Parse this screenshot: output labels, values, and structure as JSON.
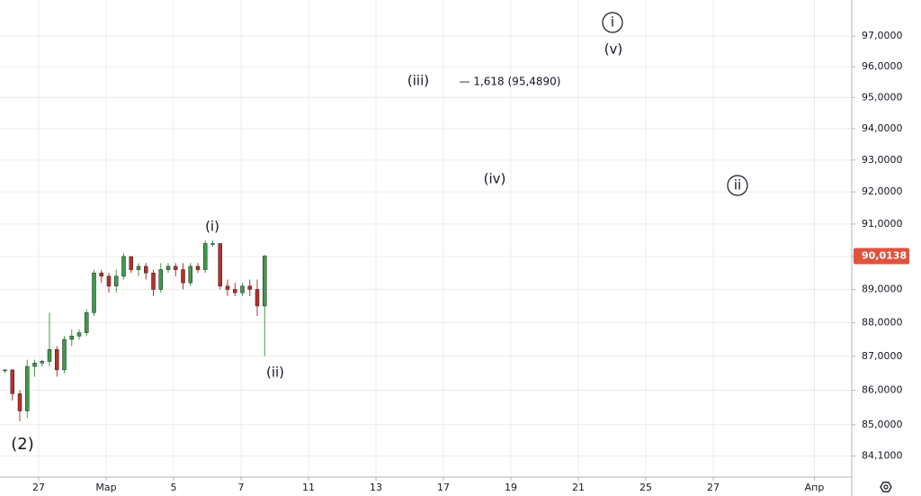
{
  "chart_data": {
    "type": "candlestick",
    "log_scale": true,
    "grid": true,
    "up_color": "#3e9a4a",
    "down_color": "#b8302a",
    "x": [
      -1.0,
      -0.78,
      -0.56,
      -0.34,
      -0.12,
      0.1,
      0.32,
      0.54,
      0.76,
      0.98,
      1.2,
      1.42,
      1.64,
      1.86,
      2.08,
      2.3,
      2.52,
      2.74,
      2.96,
      3.18,
      3.4,
      3.62,
      3.84,
      4.06,
      4.28,
      4.5,
      4.72,
      4.94,
      5.16,
      5.38,
      5.6,
      5.82,
      6.04,
      6.26,
      6.48,
      6.7
    ],
    "open": [
      86.6,
      86.6,
      85.9,
      85.4,
      86.7,
      86.8,
      86.85,
      87.2,
      86.6,
      87.5,
      87.6,
      87.7,
      88.3,
      89.5,
      89.4,
      89.1,
      89.4,
      90.0,
      89.6,
      89.7,
      89.5,
      89.0,
      89.6,
      89.7,
      89.6,
      89.2,
      89.7,
      89.6,
      90.4,
      90.4,
      89.1,
      89.0,
      88.9,
      89.1,
      89.0,
      88.5
    ],
    "high": [
      86.6,
      86.6,
      86.0,
      86.9,
      86.9,
      86.9,
      88.3,
      87.3,
      87.6,
      87.8,
      87.8,
      88.4,
      89.6,
      89.6,
      89.5,
      89.6,
      90.1,
      90.0,
      89.8,
      89.8,
      89.6,
      89.8,
      89.8,
      89.8,
      89.8,
      89.8,
      89.8,
      90.5,
      90.5,
      90.4,
      89.3,
      89.2,
      89.2,
      89.3,
      89.3,
      90.05
    ],
    "low": [
      86.5,
      85.7,
      85.1,
      85.2,
      86.4,
      86.7,
      86.7,
      86.4,
      86.5,
      87.3,
      87.5,
      87.6,
      88.2,
      89.2,
      88.9,
      88.9,
      89.3,
      89.5,
      89.4,
      89.3,
      88.8,
      88.9,
      89.5,
      89.4,
      89.0,
      89.1,
      89.5,
      89.5,
      90.3,
      89.0,
      88.8,
      88.8,
      88.8,
      88.8,
      88.2,
      87.0
    ],
    "close": [
      86.6,
      85.9,
      85.4,
      86.7,
      86.8,
      86.85,
      87.2,
      86.6,
      87.5,
      87.6,
      87.7,
      88.3,
      89.5,
      89.4,
      89.1,
      89.4,
      90.0,
      89.6,
      89.7,
      89.5,
      89.0,
      89.6,
      89.7,
      89.6,
      89.2,
      89.7,
      89.6,
      90.4,
      90.4,
      89.1,
      89.0,
      88.9,
      89.1,
      89.0,
      88.5,
      90.0138
    ],
    "xlim": [
      -1.147,
      24.107
    ],
    "xticks": [
      {
        "value": 0,
        "label": "27"
      },
      {
        "value": 2,
        "label": "Мар"
      },
      {
        "value": 4,
        "label": "5"
      },
      {
        "value": 6,
        "label": "7"
      },
      {
        "value": 8,
        "label": "11"
      },
      {
        "value": 10,
        "label": "13"
      },
      {
        "value": 12,
        "label": "17"
      },
      {
        "value": 14,
        "label": "19"
      },
      {
        "value": 16,
        "label": "21"
      },
      {
        "value": 18,
        "label": "25"
      },
      {
        "value": 20,
        "label": "27"
      },
      {
        "value": 23,
        "label": "Апр"
      }
    ],
    "ylim": [
      83.5,
      98.2
    ],
    "yticks": [
      {
        "value": 84.1,
        "label": "84,1000"
      },
      {
        "value": 85,
        "label": "85,0000"
      },
      {
        "value": 86,
        "label": "86,0000"
      },
      {
        "value": 87,
        "label": "87,0000"
      },
      {
        "value": 88,
        "label": "88,0000"
      },
      {
        "value": 89,
        "label": "89,0000"
      },
      {
        "value": 90,
        "label": "90,0000"
      },
      {
        "value": 91,
        "label": "91,0000"
      },
      {
        "value": 92,
        "label": "92,0000"
      },
      {
        "value": 93,
        "label": "93,0000"
      },
      {
        "value": 94,
        "label": "94,0000"
      },
      {
        "value": 95,
        "label": "95,0000"
      },
      {
        "value": 96,
        "label": "96,0000"
      },
      {
        "value": 97,
        "label": "97,0000"
      }
    ],
    "last_price": {
      "value": 90.0138,
      "label": "90,0138",
      "color": "#e0533d"
    },
    "annotations": [
      {
        "text": "(2)",
        "circled": false
      },
      {
        "text": "(i)",
        "circled": false
      },
      {
        "text": "(ii)",
        "circled": false
      },
      {
        "text": "(iii)",
        "circled": false
      },
      {
        "text": "— 1,618 (95,4890)",
        "circled": false
      },
      {
        "text": "(iv)",
        "circled": false
      },
      {
        "text": "(v)",
        "circled": false
      },
      {
        "text": "i",
        "circled": true
      },
      {
        "text": "ii",
        "circled": true
      }
    ]
  }
}
